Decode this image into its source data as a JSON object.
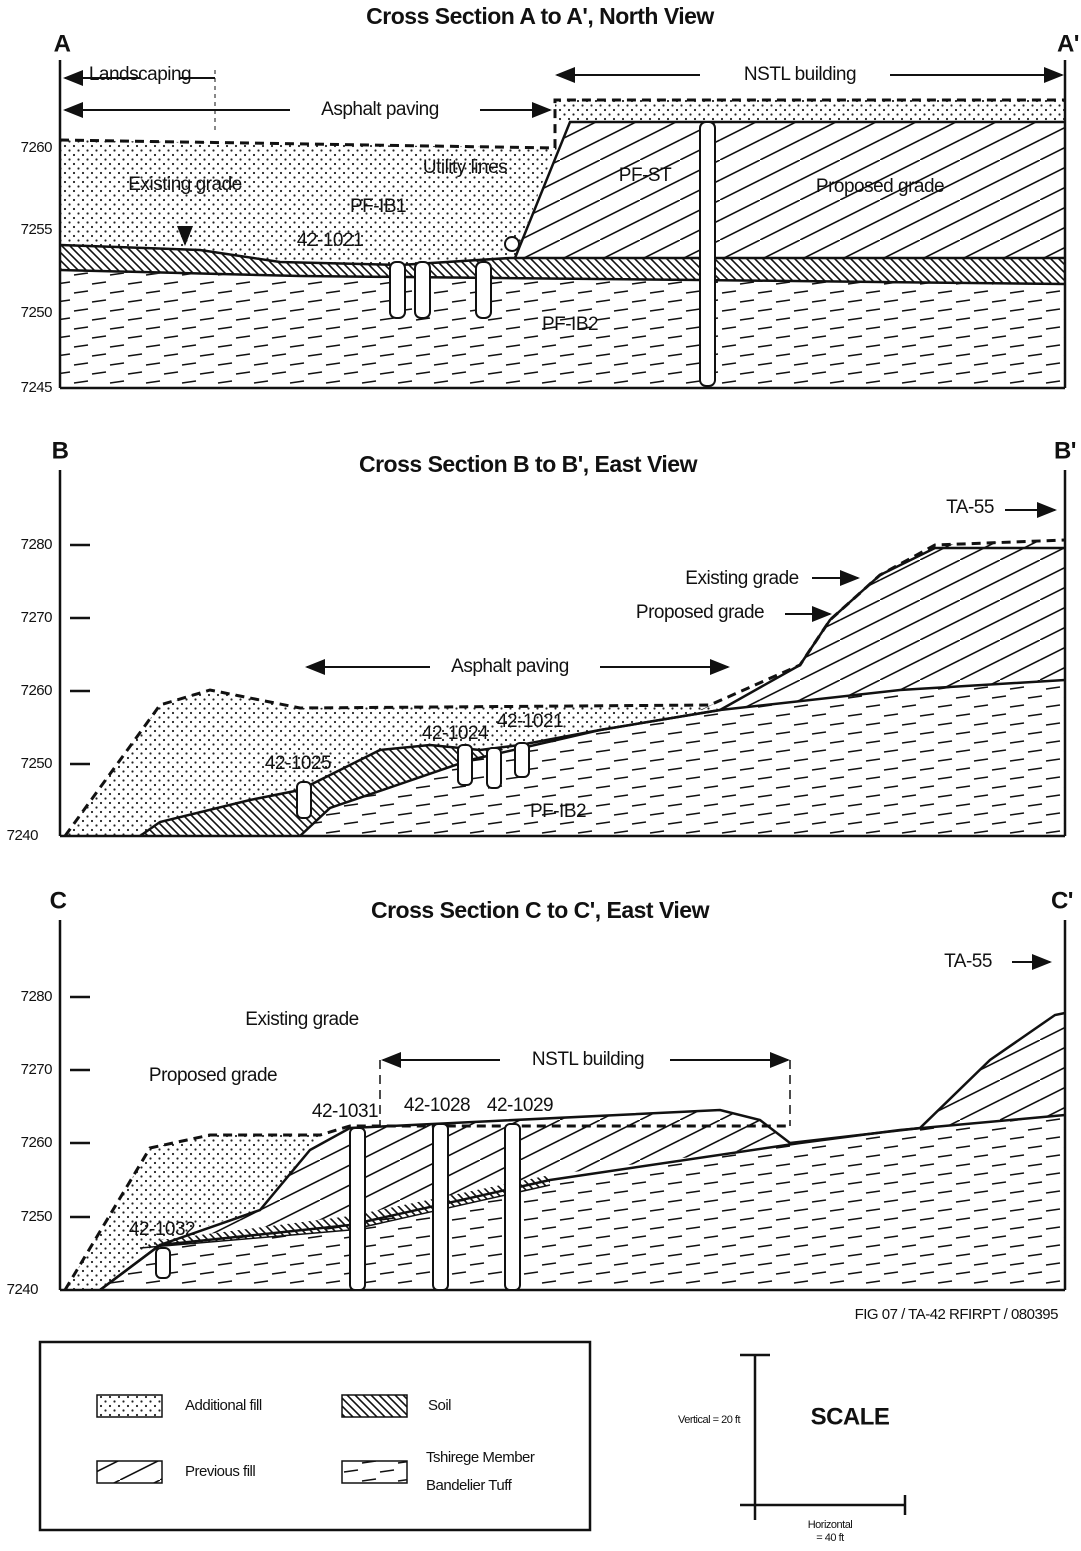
{
  "sections": [
    {
      "title": "Cross Section A to A', North View",
      "left_label": "A",
      "right_label": "A'",
      "elevations": [
        7260,
        7255,
        7250,
        7245
      ],
      "labels": [
        "Landscaping",
        "Asphalt paving",
        "NSTL building",
        "Utility lines",
        "Existing grade",
        "PF-IB1",
        "42-1021",
        "PF-ST",
        "Proposed grade",
        "PF-IB2"
      ]
    },
    {
      "title": "Cross Section B to B', East View",
      "left_label": "B",
      "right_label": "B'",
      "elevations": [
        7280,
        7270,
        7260,
        7250,
        7240
      ],
      "labels": [
        "TA-55",
        "Existing grade",
        "Proposed grade",
        "Asphalt paving",
        "42-1025",
        "42-1024",
        "42-1021",
        "PF-IB2"
      ]
    },
    {
      "title": "Cross Section C to C', East View",
      "left_label": "C",
      "right_label": "C'",
      "elevations": [
        7280,
        7270,
        7260,
        7250,
        7240
      ],
      "labels": [
        "TA-55",
        "Existing grade",
        "Proposed grade",
        "NSTL building",
        "42-1031",
        "42-1028",
        "42-1029",
        "42-1032"
      ]
    }
  ],
  "figure_id": "FIG 07 / TA-42 RFIRPT / 080395",
  "legend": {
    "items": [
      {
        "label": "Additional fill"
      },
      {
        "label": "Soil"
      },
      {
        "label": "Previous fill"
      },
      {
        "label": [
          "Tshirege Member",
          "Bandelier Tuff"
        ]
      }
    ]
  },
  "scale": {
    "title": "SCALE",
    "vertical": "Vertical = 20 ft",
    "horizontal": [
      "Horizontal",
      "= 40 ft"
    ]
  }
}
